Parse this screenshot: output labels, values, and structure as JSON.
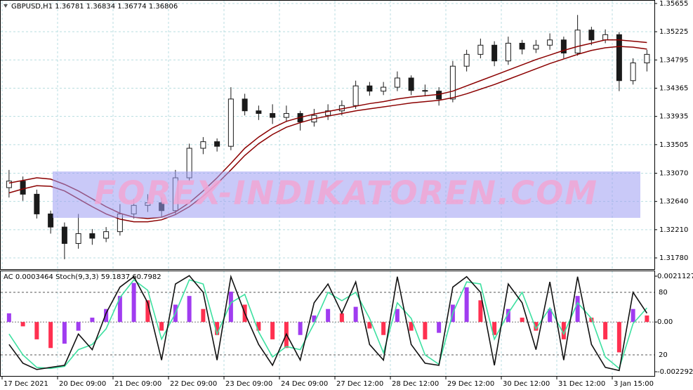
{
  "chart_data": [
    {
      "type": "candlestick",
      "header": "GBPUSD,H1  1.36781 1.36834 1.36774 1.36806",
      "watermark": "FOREX-INDIKATOREN.COM",
      "categories": [
        "17 Dec 2021",
        null,
        null,
        null,
        "20 Dec 09:00",
        null,
        null,
        null,
        "21 Dec 09:00",
        null,
        null,
        null,
        "22 Dec 09:00",
        null,
        null,
        null,
        "23 Dec 09:00",
        null,
        null,
        null,
        "24 Dec 09:00",
        null,
        null,
        null,
        "27 Dec 12:00",
        null,
        null,
        null,
        "28 Dec 12:00",
        null,
        null,
        null,
        "29 Dec 12:00",
        null,
        null,
        null,
        "30 Dec 12:00",
        null,
        null,
        null,
        "31 Dec 12:00",
        null,
        null,
        null,
        "3 Jan 15:00",
        null,
        null
      ],
      "open": [
        1.3285,
        1.3295,
        1.3275,
        1.3245,
        1.3225,
        1.32,
        1.3215,
        1.3208,
        1.3218,
        1.3245,
        1.3258,
        1.3262,
        1.325,
        1.33,
        1.3345,
        1.3355,
        1.3348,
        1.342,
        1.3402,
        1.3398,
        1.3392,
        1.3398,
        1.3385,
        1.3395,
        1.3402,
        1.341,
        1.344,
        1.3432,
        1.3438,
        1.3452,
        1.3433,
        1.3432,
        1.342,
        1.347,
        1.3488,
        1.3502,
        1.3478,
        1.3505,
        1.3496,
        1.3502,
        1.351,
        1.349,
        1.3525,
        1.351,
        1.3518,
        1.3448,
        1.3475
      ],
      "high": [
        1.3312,
        1.3302,
        1.3282,
        1.325,
        1.3232,
        1.3245,
        1.3222,
        1.3225,
        1.326,
        1.3268,
        1.3275,
        1.327,
        1.3312,
        1.3352,
        1.3362,
        1.336,
        1.3438,
        1.3428,
        1.341,
        1.3412,
        1.341,
        1.3402,
        1.3405,
        1.3412,
        1.3418,
        1.3448,
        1.3446,
        1.3446,
        1.3462,
        1.3456,
        1.3442,
        1.3438,
        1.3478,
        1.3495,
        1.3512,
        1.3508,
        1.3515,
        1.351,
        1.351,
        1.352,
        1.3515,
        1.3548,
        1.353,
        1.3526,
        1.3522,
        1.3482,
        1.3495
      ],
      "low": [
        1.327,
        1.3265,
        1.3238,
        1.3215,
        1.3176,
        1.3192,
        1.3198,
        1.3202,
        1.3212,
        1.3238,
        1.3248,
        1.324,
        1.3245,
        1.3295,
        1.3336,
        1.334,
        1.3342,
        1.3395,
        1.3388,
        1.3382,
        1.3385,
        1.3372,
        1.3378,
        1.3388,
        1.3395,
        1.3405,
        1.3425,
        1.3426,
        1.3432,
        1.3426,
        1.3424,
        1.341,
        1.3415,
        1.3462,
        1.3482,
        1.347,
        1.3472,
        1.3488,
        1.349,
        1.3495,
        1.3482,
        1.3486,
        1.3502,
        1.3505,
        1.3432,
        1.3442,
        1.3462
      ],
      "close": [
        1.3295,
        1.3275,
        1.3245,
        1.3225,
        1.32,
        1.3215,
        1.3208,
        1.3218,
        1.3245,
        1.3258,
        1.3262,
        1.325,
        1.33,
        1.3345,
        1.3355,
        1.3348,
        1.342,
        1.3402,
        1.3398,
        1.3392,
        1.3398,
        1.3385,
        1.3395,
        1.3402,
        1.341,
        1.344,
        1.3432,
        1.3438,
        1.3452,
        1.3433,
        1.3432,
        1.342,
        1.347,
        1.3488,
        1.3502,
        1.3478,
        1.3505,
        1.3496,
        1.3502,
        1.351,
        1.349,
        1.3525,
        1.351,
        1.3518,
        1.3448,
        1.3475,
        1.3488
      ],
      "candle_color": "#1a1a1a",
      "up_fill": "#ffffff",
      "series": [
        {
          "color": "#8b0000",
          "values": [
            1.3292,
            1.3296,
            1.33,
            1.3298,
            1.329,
            1.328,
            1.3268,
            1.3256,
            1.3246,
            1.324,
            1.3238,
            1.324,
            1.3248,
            1.3262,
            1.328,
            1.33,
            1.3322,
            1.3345,
            1.3362,
            1.3376,
            1.3386,
            1.3392,
            1.3397,
            1.3401,
            1.3405,
            1.3409,
            1.3413,
            1.3416,
            1.342,
            1.3423,
            1.3425,
            1.3427,
            1.3432,
            1.344,
            1.3448,
            1.3456,
            1.3464,
            1.3472,
            1.348,
            1.3487,
            1.3494,
            1.35,
            1.3505,
            1.351,
            1.351,
            1.3508,
            1.3506
          ]
        },
        {
          "color": "#8b0000",
          "values": [
            1.3277,
            1.3283,
            1.3288,
            1.3287,
            1.328,
            1.3268,
            1.3256,
            1.3245,
            1.3237,
            1.3233,
            1.3233,
            1.3236,
            1.3244,
            1.3256,
            1.3272,
            1.3291,
            1.3312,
            1.3334,
            1.3352,
            1.3366,
            1.3377,
            1.3384,
            1.339,
            1.3394,
            1.3398,
            1.3402,
            1.3405,
            1.3408,
            1.3411,
            1.3414,
            1.3416,
            1.3418,
            1.3422,
            1.3428,
            1.3435,
            1.3442,
            1.345,
            1.3458,
            1.3466,
            1.3474,
            1.3481,
            1.3488,
            1.3494,
            1.3498,
            1.35,
            1.3499,
            1.3496
          ]
        }
      ],
      "ylim": [
        1.31609,
        1.35708
      ],
      "yticks": [
        {
          "value": 1.3178,
          "label": "1.31780"
        },
        {
          "value": 1.3221,
          "label": "1.32210"
        },
        {
          "value": 1.3264,
          "label": "1.32640"
        },
        {
          "value": 1.3307,
          "label": "1.33070"
        },
        1.33505,
        1.33935,
        1.34365,
        1.34795,
        1.35225,
        1.35655
      ],
      "grid": true
    },
    {
      "type": "oscillator",
      "header": "AC 0.0003464  Stoch(9,3,3) 59.1837 60.7982",
      "bars": {
        "up_color": "#a03cf0",
        "down_color": "#ff3050",
        "values": [
          0.0004,
          -0.0002,
          -0.0008,
          -0.0012,
          -0.001,
          -0.0004,
          0.0002,
          0.0006,
          0.0012,
          0.0018,
          0.001,
          -0.0004,
          0.0008,
          0.0012,
          0.0006,
          -0.0006,
          0.0014,
          0.0008,
          -0.0004,
          -0.0008,
          -0.0012,
          -0.0006,
          0.0003,
          0.0006,
          0.0004,
          0.0007,
          -0.0003,
          -0.0006,
          0.0006,
          -0.0004,
          -0.0008,
          -0.0005,
          0.0008,
          0.0016,
          0.001,
          -0.0006,
          0.0006,
          0.0002,
          -0.0004,
          0.0006,
          -0.0008,
          0.0012,
          0.0002,
          -0.0008,
          -0.0014,
          0.0006,
          0.0003
        ]
      },
      "series": [
        {
          "color": "#3de0a0",
          "axis": "y2",
          "values": [
            40,
            20,
            8,
            7,
            9,
            25,
            30,
            45,
            75,
            92,
            82,
            35,
            60,
            92,
            88,
            40,
            70,
            78,
            42,
            18,
            28,
            25,
            50,
            80,
            72,
            80,
            55,
            22,
            70,
            55,
            20,
            11,
            60,
            90,
            88,
            35,
            60,
            80,
            45,
            65,
            40,
            70,
            55,
            18,
            7,
            50,
            65
          ]
        },
        {
          "color": "#111111",
          "axis": "y2",
          "values": [
            30,
            12,
            6,
            8,
            10,
            40,
            25,
            60,
            85,
            95,
            70,
            15,
            88,
            96,
            80,
            15,
            95,
            60,
            30,
            10,
            40,
            15,
            70,
            88,
            60,
            90,
            30,
            15,
            95,
            30,
            12,
            10,
            85,
            95,
            80,
            10,
            88,
            70,
            25,
            90,
            15,
            95,
            30,
            8,
            5,
            80,
            60
          ]
        }
      ],
      "ylim": [
        -0.0024873,
        0.0023719
      ],
      "yticks": [
        -0.0022929,
        {
          "value": 0,
          "label": "0.00"
        },
        0.0021127
      ],
      "y2lim": [
        -0.2,
        100.9
      ],
      "y2ticks": [
        20,
        80
      ]
    }
  ]
}
